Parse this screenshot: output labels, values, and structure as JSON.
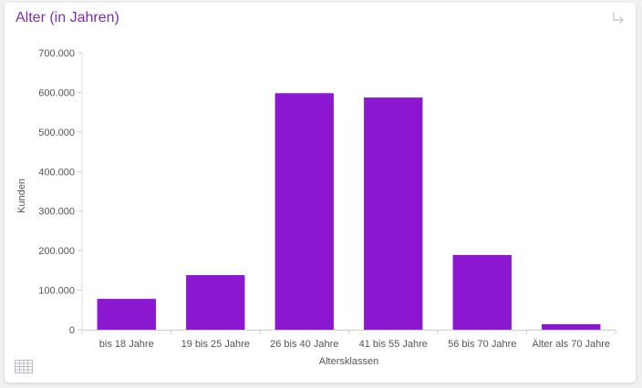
{
  "card": {
    "title": "Alter (in Jahren)"
  },
  "icons": {
    "corner": "return-arrow-icon",
    "table": "table-grid-icon"
  },
  "colors": {
    "bar": "#8b17d0",
    "title": "#7b2fa6"
  },
  "chart_data": {
    "type": "bar",
    "title": "Alter (in Jahren)",
    "xlabel": "Altersklassen",
    "ylabel": "Kunden",
    "categories": [
      "bis 18 Jahre",
      "19 bis 25 Jahre",
      "26 bis 40 Jahre",
      "41 bis 55 Jahre",
      "56 bis 70 Jahre",
      "Älter als 70 Jahre"
    ],
    "values": [
      78000,
      138000,
      598000,
      587000,
      189000,
      14000
    ],
    "ylim": [
      0,
      700000
    ],
    "yticks": [
      0,
      100000,
      200000,
      300000,
      400000,
      500000,
      600000,
      700000
    ],
    "ytick_labels": [
      "0",
      "100.000",
      "200.000",
      "300.000",
      "400.000",
      "500.000",
      "600.000",
      "700.000"
    ],
    "grid": false,
    "legend": "none"
  }
}
